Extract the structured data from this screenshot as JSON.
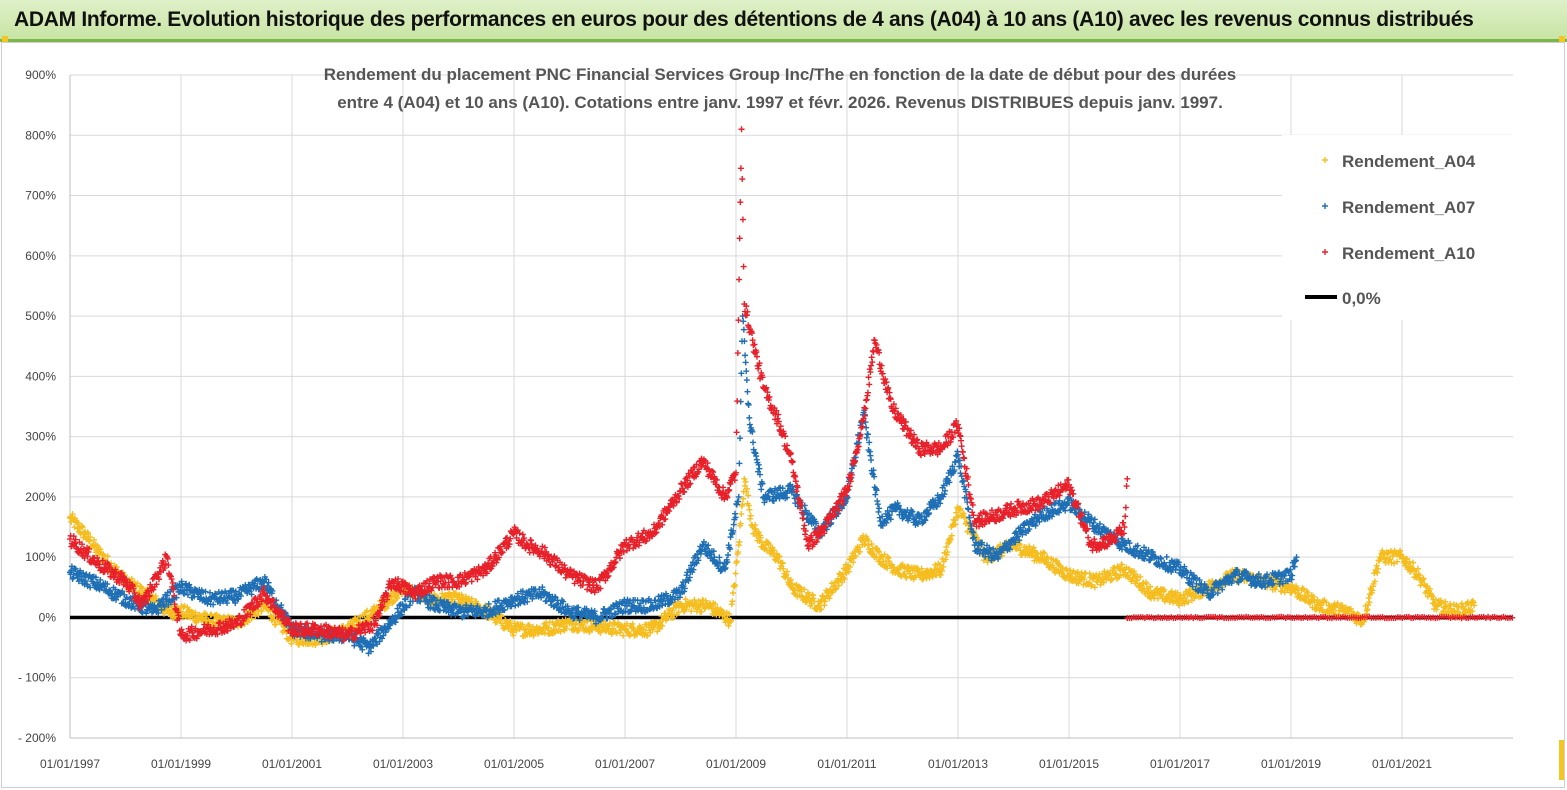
{
  "banner": {
    "title": "ADAM Informe. Evolution historique des performances en euros pour des détentions de 4 ans (A04) à 10 ans (A10) avec les revenus connus distribués"
  },
  "colors": {
    "banner_bg": "#d9edbf",
    "banner_border": "#7cb648",
    "A04": "#f5bd1f",
    "A07": "#1f6fb5",
    "A10": "#e8202a",
    "zero": "#000000",
    "grid": "#d9d9d9"
  },
  "chart_data": {
    "type": "scatter",
    "title_lines": [
      "Rendement du placement PNC Financial Services Group Inc/The en fonction de la date de début pour des durées",
      "entre 4 (A04) et 10 ans (A10).  Cotations entre janv. 1997 et févr. 2026. Revenus DISTRIBUES depuis janv. 1997."
    ],
    "xlabel": "",
    "ylabel": "",
    "x_range": [
      1997.0,
      2023.0
    ],
    "ylim": [
      -200,
      900
    ],
    "y_ticks": [
      -200,
      -100,
      0,
      100,
      200,
      300,
      400,
      500,
      600,
      700,
      800,
      900
    ],
    "y_tick_labels": [
      "- 200%",
      "- 100%",
      "0%",
      "100%",
      "200%",
      "300%",
      "400%",
      "500%",
      "600%",
      "700%",
      "800%",
      "900%"
    ],
    "x_ticks": [
      1997,
      1999,
      2001,
      2003,
      2005,
      2007,
      2009,
      2011,
      2013,
      2015,
      2017,
      2019,
      2021
    ],
    "x_tick_labels": [
      "01/01/1997",
      "01/01/1999",
      "01/01/2001",
      "01/01/2003",
      "01/01/2005",
      "01/01/2007",
      "01/01/2009",
      "01/01/2011",
      "01/01/2013",
      "01/01/2015",
      "01/01/2017",
      "01/01/2019",
      "01/01/2021"
    ],
    "legend_position": "top-right",
    "series": [
      {
        "name": "Rendement_A04",
        "marker": "+",
        "x": [
          1997.0,
          1997.25,
          1997.5,
          1998.0,
          1998.5,
          1998.75,
          1999.0,
          1999.5,
          2000.0,
          2000.5,
          2001.0,
          2001.5,
          2002.0,
          2002.5,
          2003.0,
          2003.5,
          2004.0,
          2004.5,
          2005.0,
          2005.5,
          2006.0,
          2006.5,
          2007.0,
          2007.5,
          2008.0,
          2008.5,
          2008.9,
          2009.05,
          2009.15,
          2009.3,
          2009.5,
          2009.75,
          2010.0,
          2010.5,
          2011.0,
          2011.3,
          2011.6,
          2011.9,
          2012.3,
          2012.7,
          2013.0,
          2013.5,
          2014.0,
          2014.5,
          2015.0,
          2015.5,
          2016.0,
          2016.5,
          2017.0,
          2017.5,
          2018.0,
          2018.5,
          2019.0,
          2019.5,
          2020.0,
          2020.3,
          2020.6,
          2021.0,
          2021.3,
          2021.6,
          2022.0,
          2022.3
        ],
        "y": [
          165,
          140,
          110,
          60,
          30,
          10,
          10,
          -5,
          -10,
          20,
          -35,
          -35,
          -20,
          10,
          50,
          30,
          30,
          10,
          -20,
          -20,
          -10,
          -15,
          -20,
          -20,
          20,
          20,
          -5,
          120,
          230,
          150,
          120,
          100,
          50,
          20,
          80,
          130,
          100,
          80,
          70,
          80,
          180,
          100,
          120,
          100,
          70,
          60,
          80,
          40,
          30,
          50,
          70,
          60,
          50,
          20,
          10,
          -5,
          100,
          100,
          70,
          20,
          10,
          20
        ]
      },
      {
        "name": "Rendement_A07",
        "marker": "+",
        "x": [
          1997.0,
          1997.5,
          1998.0,
          1998.5,
          1999.0,
          1999.5,
          2000.0,
          2000.5,
          2001.0,
          2001.5,
          2002.0,
          2002.4,
          2002.8,
          2003.2,
          2003.6,
          2004.0,
          2004.5,
          2005.0,
          2005.5,
          2006.0,
          2006.5,
          2007.0,
          2007.5,
          2008.0,
          2008.4,
          2008.8,
          2009.05,
          2009.12,
          2009.25,
          2009.5,
          2010.0,
          2010.5,
          2011.0,
          2011.3,
          2011.6,
          2011.9,
          2012.3,
          2012.7,
          2013.0,
          2013.3,
          2013.7,
          2014.0,
          2014.5,
          2015.0,
          2015.5,
          2016.0,
          2016.5,
          2017.0,
          2017.5,
          2018.0,
          2018.5,
          2019.0,
          2019.1
        ],
        "y": [
          75,
          55,
          30,
          10,
          50,
          30,
          35,
          60,
          -20,
          -30,
          -30,
          -50,
          -5,
          40,
          20,
          10,
          10,
          30,
          40,
          10,
          0,
          20,
          20,
          40,
          120,
          80,
          200,
          500,
          320,
          200,
          210,
          140,
          200,
          340,
          160,
          180,
          160,
          200,
          270,
          120,
          100,
          130,
          170,
          190,
          150,
          120,
          100,
          80,
          40,
          70,
          60,
          70,
          100
        ]
      },
      {
        "name": "Rendement_A10",
        "marker": "+",
        "x": [
          1997.0,
          1997.5,
          1998.0,
          1998.3,
          1998.75,
          1999.0,
          1999.5,
          2000.0,
          2000.5,
          2001.0,
          2001.5,
          2002.0,
          2002.5,
          2002.8,
          2003.2,
          2003.6,
          2004.0,
          2004.5,
          2005.0,
          2005.25,
          2005.5,
          2006.0,
          2006.5,
          2007.0,
          2007.5,
          2008.0,
          2008.4,
          2008.8,
          2009.0,
          2009.1,
          2009.15,
          2009.3,
          2009.5,
          2009.75,
          2010.0,
          2010.3,
          2010.6,
          2011.0,
          2011.3,
          2011.5,
          2011.8,
          2012.3,
          2012.7,
          2013.0,
          2013.3,
          2013.7,
          2014.0,
          2014.5,
          2015.0,
          2015.4,
          2015.8,
          2016.0,
          2016.05
        ],
        "y": [
          130,
          90,
          60,
          20,
          100,
          -30,
          -20,
          -10,
          40,
          -20,
          -20,
          -30,
          -10,
          60,
          40,
          60,
          60,
          80,
          140,
          120,
          110,
          70,
          50,
          120,
          140,
          210,
          260,
          200,
          240,
          810,
          520,
          460,
          380,
          330,
          260,
          120,
          150,
          210,
          330,
          460,
          350,
          280,
          280,
          320,
          160,
          170,
          180,
          190,
          220,
          120,
          130,
          150,
          230
        ]
      },
      {
        "name": "0,0%",
        "marker": "line",
        "x": [
          1997.0,
          2023.0
        ],
        "y": [
          0,
          0
        ]
      }
    ]
  }
}
